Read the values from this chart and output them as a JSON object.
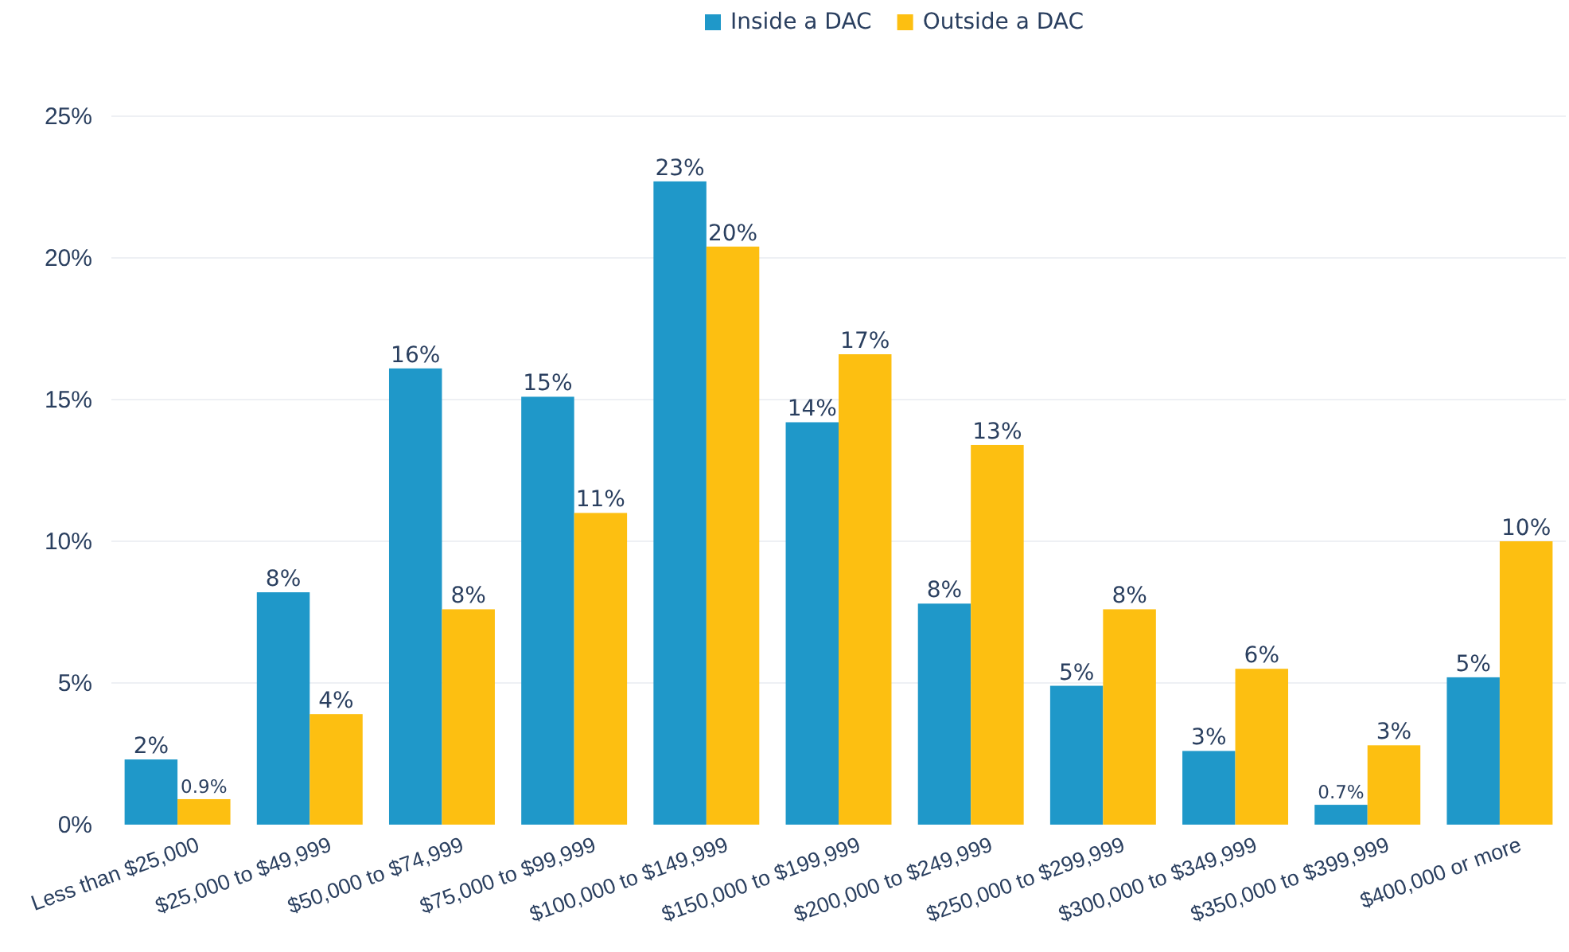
{
  "chart_data": {
    "type": "bar",
    "categories": [
      "Less than $25,000",
      "$25,000 to $49,999",
      "$50,000 to $74,999",
      "$75,000 to $99,999",
      "$100,000 to $149,999",
      "$150,000 to $199,999",
      "$200,000 to $249,999",
      "$250,000 to $299,999",
      "$300,000 to $349,999",
      "$350,000 to $399,999",
      "$400,000 or more"
    ],
    "series": [
      {
        "name": "Inside a DAC",
        "color": "#1f98c9",
        "values": [
          2.3,
          8.2,
          16.1,
          15.1,
          22.7,
          14.2,
          7.8,
          4.9,
          2.6,
          0.7,
          5.2
        ],
        "value_labels": [
          "2%",
          "8%",
          "16%",
          "15%",
          "23%",
          "14%",
          "8%",
          "5%",
          "3%",
          "0.7%",
          "5%"
        ]
      },
      {
        "name": "Outside a DAC",
        "color": "#fdbf11",
        "values": [
          0.9,
          3.9,
          7.6,
          11.0,
          20.4,
          16.6,
          13.4,
          7.6,
          5.5,
          2.8,
          10.0
        ],
        "value_labels": [
          "0.9%",
          "4%",
          "8%",
          "11%",
          "20%",
          "17%",
          "13%",
          "8%",
          "6%",
          "3%",
          "10%"
        ]
      }
    ],
    "ylim": [
      0,
      25
    ],
    "yticks": [
      {
        "value": 0,
        "label": "0%"
      },
      {
        "value": 5,
        "label": "5%"
      },
      {
        "value": 10,
        "label": "10%"
      },
      {
        "value": 15,
        "label": "15%"
      },
      {
        "value": 20,
        "label": "20%"
      },
      {
        "value": 25,
        "label": "25%"
      }
    ],
    "grid": "y",
    "legend": "top"
  }
}
